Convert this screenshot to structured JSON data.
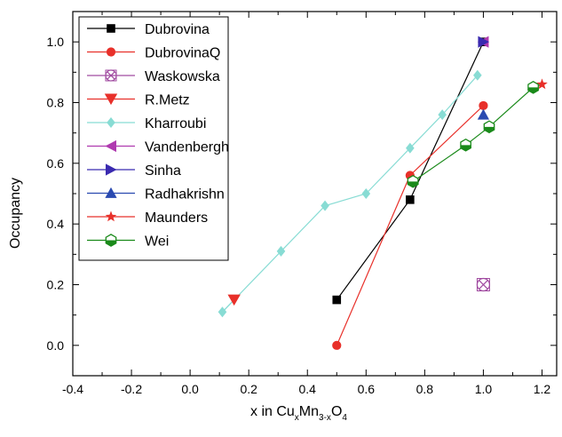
{
  "chart_data": {
    "type": "scatter",
    "title": "",
    "xlabel": {
      "main": "x in Cu",
      "sub1": "x",
      "mid": "Mn",
      "sub2": "3-x",
      "end": "O",
      "sub3": "4"
    },
    "ylabel": "Occupancy",
    "xlim": [
      -0.4,
      1.25
    ],
    "ylim": [
      -0.1,
      1.1
    ],
    "x_ticks": [
      -0.4,
      -0.2,
      0.0,
      0.2,
      0.4,
      0.6,
      0.8,
      1.0,
      1.2
    ],
    "x_tick_labels": [
      "-0.4",
      "-0.2",
      "0.0",
      "0.2",
      "0.4",
      "0.6",
      "0.8",
      "1.0",
      "1.2"
    ],
    "y_ticks": [
      0.0,
      0.2,
      0.4,
      0.6,
      0.8,
      1.0
    ],
    "y_tick_labels": [
      "0.0",
      "0.2",
      "0.4",
      "0.6",
      "0.8",
      "1.0"
    ],
    "grid": false,
    "legend_position": "top-left",
    "series": [
      {
        "name": "Dubrovina",
        "color": "#000000",
        "marker": "square",
        "x": [
          0.5,
          0.75,
          1.0
        ],
        "y": [
          0.15,
          0.48,
          1.0
        ]
      },
      {
        "name": "DubrovinaQ",
        "color": "#e8302a",
        "marker": "circle",
        "x": [
          0.5,
          0.75,
          1.0
        ],
        "y": [
          0.0,
          0.56,
          0.79
        ]
      },
      {
        "name": "Waskowska",
        "color": "#a04aa0",
        "marker": "crossed-circle",
        "x": [
          1.0
        ],
        "y": [
          0.2
        ]
      },
      {
        "name": "R.Metz",
        "color": "#e8302a",
        "marker": "triangle-down",
        "x": [
          0.15
        ],
        "y": [
          0.15
        ]
      },
      {
        "name": "Kharroubi",
        "color": "#88dcd4",
        "marker": "diamond",
        "x": [
          0.11,
          0.31,
          0.46,
          0.6,
          0.75,
          0.86,
          0.98
        ],
        "y": [
          0.11,
          0.31,
          0.46,
          0.5,
          0.65,
          0.76,
          0.89
        ]
      },
      {
        "name": "Vandenbergh",
        "color": "#b03ab0",
        "marker": "triangle-left",
        "x": [
          1.0
        ],
        "y": [
          1.0
        ]
      },
      {
        "name": "Sinha",
        "color": "#3a2ab0",
        "marker": "triangle-right",
        "x": [
          1.0
        ],
        "y": [
          1.0
        ]
      },
      {
        "name": "Radhakrishn",
        "color": "#2a4ab0",
        "marker": "triangle-up",
        "x": [
          1.0
        ],
        "y": [
          0.76
        ]
      },
      {
        "name": "Maunders",
        "color": "#e8302a",
        "marker": "star",
        "x": [
          1.2
        ],
        "y": [
          0.86
        ]
      },
      {
        "name": "Wei",
        "color": "#1a8a1a",
        "marker": "hexagon-half",
        "x": [
          0.76,
          0.94,
          1.02,
          1.17
        ],
        "y": [
          0.54,
          0.66,
          0.72,
          0.85
        ]
      }
    ],
    "lines": [
      {
        "series": "Dubrovina",
        "color": "#000000",
        "points": [
          [
            0.5,
            0.15
          ],
          [
            0.75,
            0.48
          ],
          [
            1.0,
            1.0
          ]
        ]
      },
      {
        "series": "DubrovinaQ",
        "color": "#e8302a",
        "points": [
          [
            0.5,
            0.0
          ],
          [
            0.75,
            0.56
          ],
          [
            1.0,
            0.79
          ]
        ]
      },
      {
        "series": "Kharroubi",
        "color": "#88dcd4",
        "points": [
          [
            0.11,
            0.11
          ],
          [
            0.31,
            0.31
          ],
          [
            0.46,
            0.46
          ],
          [
            0.6,
            0.5
          ],
          [
            0.75,
            0.65
          ],
          [
            0.86,
            0.76
          ],
          [
            0.98,
            0.89
          ]
        ]
      },
      {
        "series": "Wei",
        "color": "#1a8a1a",
        "points": [
          [
            0.76,
            0.54
          ],
          [
            0.94,
            0.66
          ],
          [
            1.02,
            0.72
          ],
          [
            1.17,
            0.85
          ],
          [
            1.2,
            0.86
          ]
        ]
      },
      {
        "series": "R.Metz",
        "color": "#88dcd4",
        "points": [
          [
            0.15,
            0.15
          ],
          [
            0.11,
            0.11
          ]
        ]
      }
    ]
  }
}
